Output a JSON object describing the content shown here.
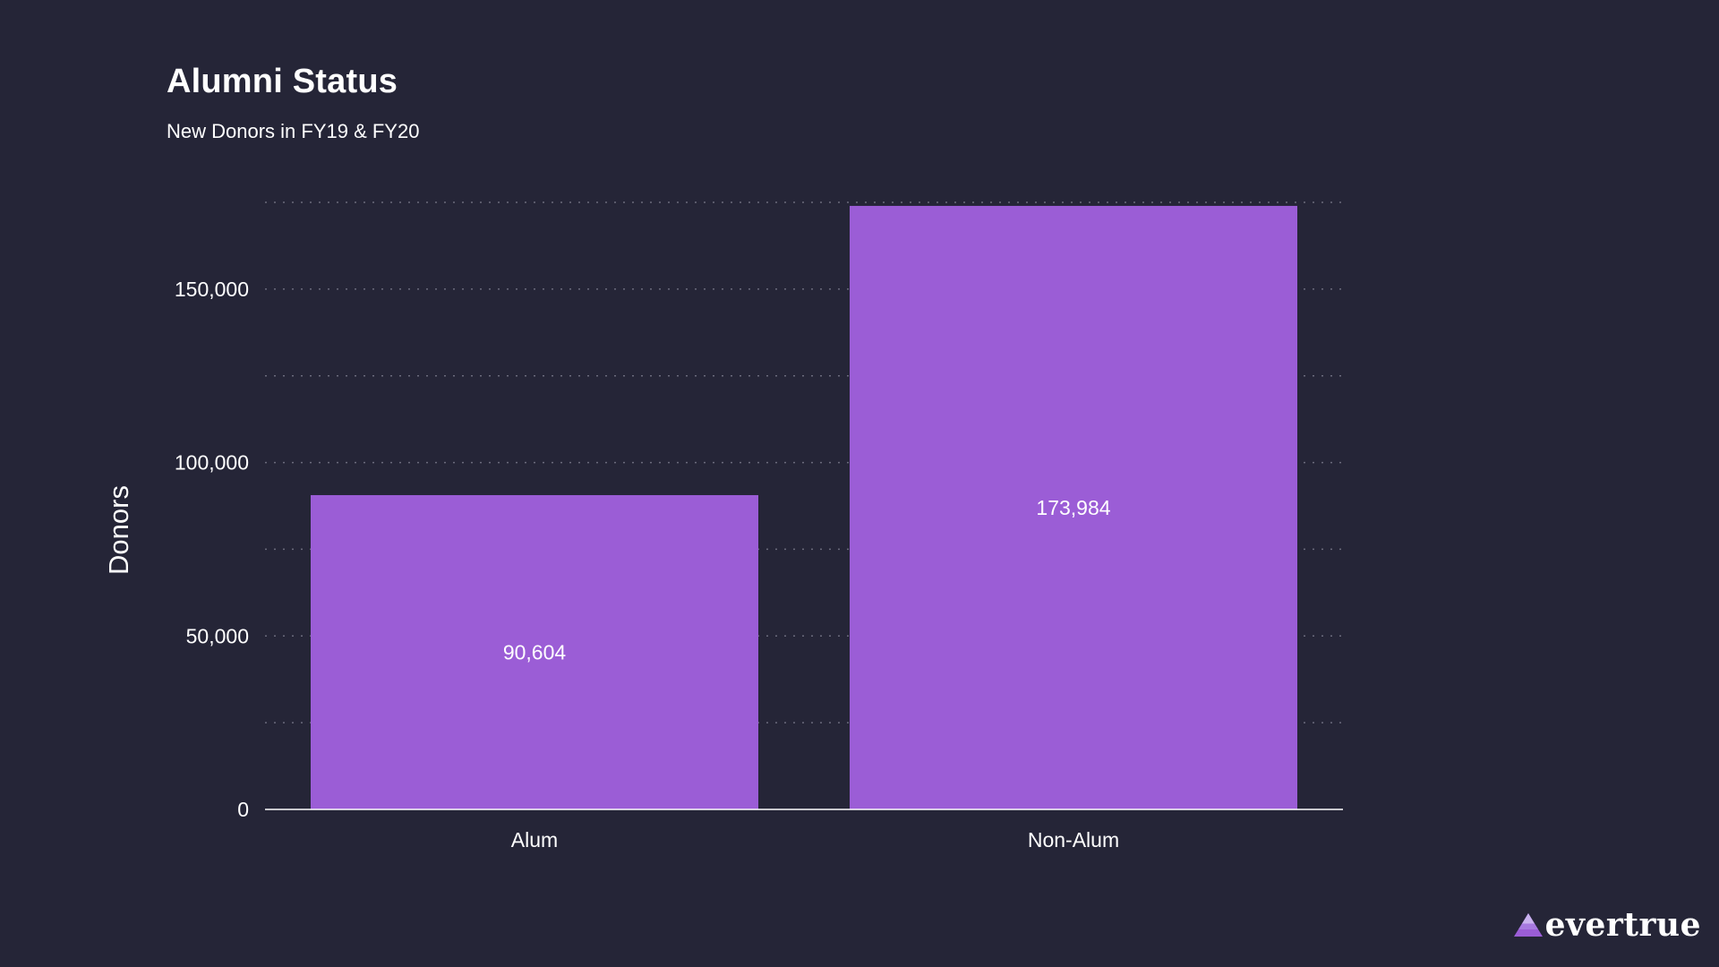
{
  "chart_data": {
    "type": "bar",
    "title": "Alumni Status",
    "subtitle": "New Donors in FY19 & FY20",
    "ylabel": "Donors",
    "xlabel": "",
    "categories": [
      "Alum",
      "Non-Alum"
    ],
    "values": [
      90604,
      173984
    ],
    "data_labels": [
      "90,604",
      "173,984"
    ],
    "ylim": [
      0,
      175000
    ],
    "yticks": [
      0,
      50000,
      100000,
      150000
    ],
    "ytick_labels": [
      "0",
      "50,000",
      "100,000",
      "150,000"
    ],
    "grid": true,
    "legend": "none",
    "bar_color": "#9b5dd6",
    "background_color": "#252537"
  },
  "branding": {
    "logo_text": "evertrue"
  }
}
